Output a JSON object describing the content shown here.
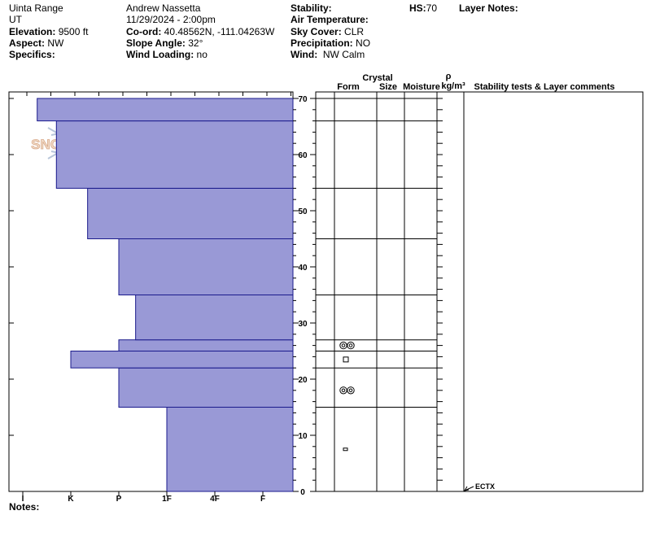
{
  "header": {
    "range": "Uinta Range",
    "state": "UT",
    "elevation_label": "Elevation:",
    "elevation_value": "9500 ft",
    "aspect_label": "Aspect:",
    "aspect_value": "NW",
    "specifics_label": "Specifics:",
    "observer": "Andrew Nassetta",
    "datetime": "11/29/2024 - 2:00pm",
    "coord_label": "Co-ord:",
    "coord_value": "40.48562N, -111.04263W",
    "slope_label": "Slope Angle:",
    "slope_value": "32°",
    "wind_loading_label": "Wind Loading:",
    "wind_loading_value": "no",
    "stability_label": "Stability:",
    "air_temp_label": "Air Temperature:",
    "sky_label": "Sky Cover:",
    "sky_value": "CLR",
    "precip_label": "Precipitation:",
    "precip_value": "NO",
    "wind_label": "Wind:",
    "wind_value": "NW Calm",
    "hs_label": "HS:",
    "hs_value": "70",
    "layer_notes_label": "Layer Notes:"
  },
  "notes_label": "Notes:",
  "logo_text": "SNOW PILOT",
  "columns": {
    "crystal": "Crystal",
    "form": "Form",
    "size": "Size",
    "moisture": "Moisture",
    "rho": "ρ",
    "density_unit": "kg/m³",
    "stability": "Stability tests & Layer comments"
  },
  "test_annotation": {
    "label": "ECTX",
    "height": 0
  },
  "colors": {
    "bar_fill": "#9999d6",
    "bar_stroke": "#1a1a8c"
  },
  "chart_data": {
    "type": "bar",
    "orientation": "horizontal",
    "y_axis": {
      "label": "",
      "range": [
        0,
        70
      ],
      "ticks": [
        0,
        10,
        20,
        30,
        40,
        50,
        60,
        70
      ]
    },
    "x_axis": {
      "categories": [
        "I",
        "K",
        "P",
        "1F",
        "4F",
        "F"
      ],
      "direction": "reversed"
    },
    "layers": [
      {
        "bottom": 0,
        "top": 15,
        "hardness": "1F"
      },
      {
        "bottom": 15,
        "top": 22,
        "hardness": "4F"
      },
      {
        "bottom": 22,
        "top": 25,
        "hardness": "F"
      },
      {
        "bottom": 25,
        "top": 27,
        "hardness": "4F"
      },
      {
        "bottom": 27,
        "top": 35,
        "hardness": "4F-"
      },
      {
        "bottom": 35,
        "top": 45,
        "hardness": "4F"
      },
      {
        "bottom": 45,
        "top": 54,
        "hardness": "F-"
      },
      {
        "bottom": 54,
        "top": 66,
        "hardness": "F+"
      },
      {
        "bottom": 66,
        "top": 70,
        "hardness": "F++"
      }
    ],
    "hardness_scale": {
      "F++": 0.3,
      "F+": 0.7,
      "F": 1,
      "F-": 1.35,
      "4F": 2,
      "4F-": 2.35,
      "1F": 3
    },
    "grain_forms": [
      {
        "height": 26,
        "symbol": "rounding-faceted"
      },
      {
        "height": 23.5,
        "symbol": "faceted"
      },
      {
        "height": 18,
        "symbol": "rounding-faceted"
      },
      {
        "height": 7.5,
        "symbol": "faceted-small"
      }
    ]
  }
}
